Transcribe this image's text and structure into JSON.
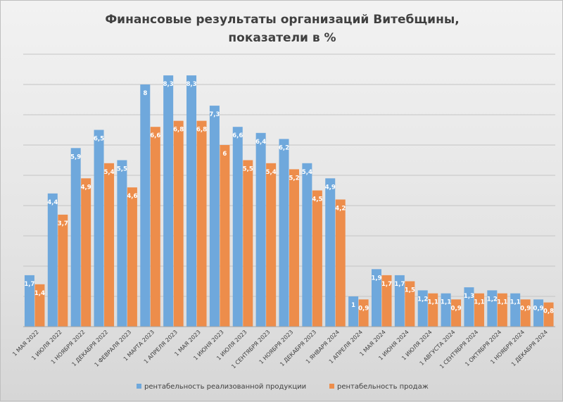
{
  "chart_data": {
    "type": "bar",
    "title_lines": [
      "Финансовые результаты организаций Витебщины,",
      "показатели в %"
    ],
    "categories": [
      "1 МАЯ 2022",
      "1 ИЮЛЯ 2022",
      "1 НОЯБРЯ 2022",
      "1 ДЕКАБРЯ 2022",
      "1 ФЕВРАЛЯ 2023",
      "1 МАРТА 2023",
      "1 АПРЕЛЯ 2023",
      "1 МАЯ 2023",
      "1 ИЮНЯ 2023",
      "1 ИЮЛЯ 2023",
      "1 СЕНТЯБРЯ 2023",
      "1 НОЯБРЯ 2023",
      "1 ДЕКАБРЯ 2023",
      "1 ЯНВАРЯ 2024",
      "1 АПРЕЛЯ 2024",
      "1 МАЯ 2024",
      "1 ИЮНЯ 2024",
      "1 ИЮЛЯ 2024",
      "1 АВГУСТА 2024",
      "1 СЕНТЯБРЯ 2024",
      "1 ОКТЯБРЯ 2024",
      "1 НОЯБРЯ 2024",
      "1 ДЕКАБРЯ 2024"
    ],
    "series": [
      {
        "name": "рентабельность реализованной продукции",
        "color": "#6fa8dc",
        "values": [
          1.7,
          4.4,
          5.9,
          6.5,
          5.5,
          8,
          8.3,
          8.3,
          7.3,
          6.6,
          6.4,
          6.2,
          5.4,
          4.9,
          1,
          1.9,
          1.7,
          1.2,
          1.1,
          1.3,
          1.2,
          1.1,
          0.9
        ],
        "labels": [
          "1,7",
          "4,4",
          "5,9",
          "6,5",
          "5,5",
          "8",
          "8,3",
          "8,3",
          "7,3",
          "6,6",
          "6,4",
          "6,2",
          "5,4",
          "4,9",
          "1",
          "1,9",
          "1,7",
          "1,2",
          "1,1",
          "1,3",
          "1,2",
          "1,1",
          "0,9"
        ]
      },
      {
        "name": "рентабельность продаж",
        "color": "#ed8d4b",
        "values": [
          1.4,
          3.7,
          4.9,
          5.4,
          4.6,
          6.6,
          6.8,
          6.8,
          6,
          5.5,
          5.4,
          5.2,
          4.5,
          4.2,
          0.9,
          1.7,
          1.5,
          1.1,
          0.9,
          1.1,
          1.1,
          0.9,
          0.8
        ],
        "labels": [
          "1,4",
          "3,7",
          "4,9",
          "5,4",
          "4,6",
          "6,6",
          "6,8",
          "6,8",
          "6",
          "5,5",
          "5,4",
          "5,2",
          "4,5",
          "4,2",
          "0,9",
          "1,7",
          "1,5",
          "1,1",
          "0,9",
          "1,1",
          "1,1",
          "0,9",
          "0,8"
        ]
      }
    ],
    "ylim": [
      0,
      9
    ],
    "grid": true,
    "legend_position": "bottom"
  }
}
